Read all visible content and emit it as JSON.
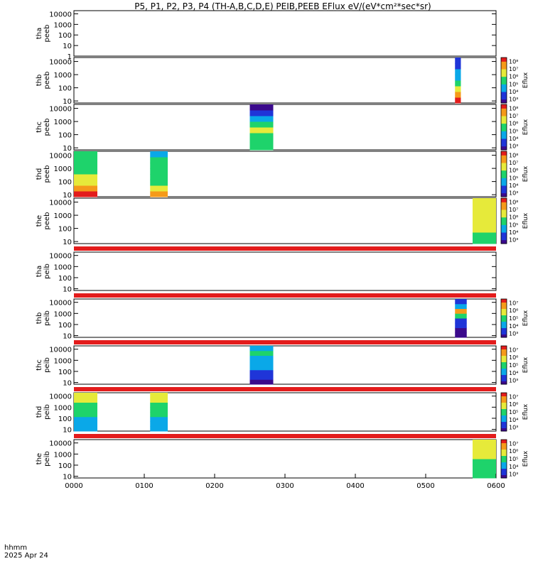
{
  "title": "P5, P1, P2, P3, P4 (TH-A,B,C,D,E) PEIB,PEEB EFlux eV/(eV*cm²*sec*sr)",
  "footer": {
    "time_format": "hhmm",
    "date": "2025 Apr 24"
  },
  "chart_data": {
    "type": "heatmap",
    "title": "P5, P1, P2, P3, P4 (TH-A,B,C,D,E) PEIB,PEEB EFlux eV/(eV*cm²*sec*sr)",
    "x_axis": {
      "unit": "hhmm",
      "range": [
        "0000",
        "0600"
      ],
      "tick_labels": [
        "0000",
        "0100",
        "0200",
        "0300",
        "0400",
        "0500",
        "0600"
      ]
    },
    "colorbar_label": "Eflux",
    "colormap": [
      "#3b0a8c",
      "#1f35d8",
      "#0aa8e8",
      "#1ed36b",
      "#e6ea3a",
      "#f59a1a",
      "#e31c1c"
    ],
    "panels": [
      {
        "id": "tha-peeb",
        "label": [
          "tha",
          "peeb"
        ],
        "y_log": true,
        "y_ticks": [
          "1",
          "10",
          "100",
          "1000",
          "10000"
        ],
        "ymin": 1,
        "ymax": 20000,
        "colorbar": null,
        "bars": [],
        "data": []
      },
      {
        "id": "thb-peeb",
        "label": [
          "thb",
          "peeb"
        ],
        "y_log": true,
        "y_ticks": [
          "10",
          "100",
          "1000",
          "10000"
        ],
        "ymin": 7,
        "ymax": 20000,
        "colorbar": {
          "ticks": [
            "10³",
            "10⁴",
            "10⁵",
            "10⁶",
            "10⁷",
            "10⁸"
          ]
        },
        "bars": [],
        "data": [
          {
            "start": "0525",
            "end": "0530",
            "profile": [
              0.95,
              0.8,
              0.6,
              0.45,
              0.35,
              0.25,
              0.18,
              0.1
            ]
          }
        ]
      },
      {
        "id": "thc-peeb",
        "label": [
          "thc",
          "peeb"
        ],
        "y_log": true,
        "y_ticks": [
          "10",
          "100",
          "1000",
          "10000"
        ],
        "ymin": 7,
        "ymax": 20000,
        "colorbar": {
          "ticks": [
            "10³",
            "10⁴",
            "10⁵",
            "10⁶",
            "10⁷",
            "10⁸"
          ]
        },
        "bars": [],
        "data": [
          {
            "start": "0230",
            "end": "0250",
            "profile": [
              0.5,
              0.45,
              0.55,
              0.6,
              0.5,
              0.35,
              0.2,
              0.08
            ]
          }
        ]
      },
      {
        "id": "thd-peeb",
        "label": [
          "thd",
          "peeb"
        ],
        "y_log": true,
        "y_ticks": [
          "10",
          "100",
          "1000",
          "10000"
        ],
        "ymin": 7,
        "ymax": 20000,
        "colorbar": {
          "ticks": [
            "10³",
            "10⁴",
            "10⁵",
            "10⁶",
            "10⁷",
            "10⁸"
          ]
        },
        "bars": [],
        "data": [
          {
            "start": "0000",
            "end": "0020",
            "profile": [
              0.92,
              0.75,
              0.68,
              0.62,
              0.58,
              0.55,
              0.5,
              0.45
            ]
          },
          {
            "start": "0105",
            "end": "0120",
            "profile": [
              0.88,
              0.62,
              0.55,
              0.5,
              0.48,
              0.45,
              0.42,
              0.4
            ]
          }
        ]
      },
      {
        "id": "the-peeb",
        "label": [
          "the",
          "peeb"
        ],
        "y_log": true,
        "y_ticks": [
          "10",
          "100",
          "1000",
          "10000"
        ],
        "ymin": 7,
        "ymax": 20000,
        "colorbar": {
          "ticks": [
            "10³",
            "10⁴",
            "10⁵",
            "10⁶",
            "10⁷",
            "10⁸"
          ]
        },
        "bars": [],
        "data": [
          {
            "start": "0540",
            "end": "0600",
            "profile": [
              0.5,
              0.55,
              0.6,
              0.63,
              0.66,
              0.68,
              0.7,
              0.7
            ]
          }
        ]
      },
      {
        "id": "tha-peib",
        "label": [
          "tha",
          "peib"
        ],
        "y_log": true,
        "y_ticks": [
          "10",
          "100",
          "1000",
          "10000"
        ],
        "ymin": 7,
        "ymax": 20000,
        "colorbar": null,
        "bars": [
          "top"
        ],
        "data": []
      },
      {
        "id": "thb-peib",
        "label": [
          "thb",
          "peib"
        ],
        "y_log": true,
        "y_ticks": [
          "10",
          "100",
          "1000",
          "10000"
        ],
        "ymin": 7,
        "ymax": 20000,
        "colorbar": {
          "ticks": [
            "10³",
            "10⁴",
            "10⁵",
            "10⁶",
            "10⁷"
          ]
        },
        "bars": [
          "top"
        ],
        "data": [
          {
            "start": "0525",
            "end": "0535",
            "profile": [
              0.05,
              0.08,
              0.12,
              0.2,
              0.55,
              0.85,
              0.35,
              0.15
            ]
          }
        ]
      },
      {
        "id": "thc-peib",
        "label": [
          "thc",
          "peib"
        ],
        "y_log": true,
        "y_ticks": [
          "10",
          "100",
          "1000",
          "10000"
        ],
        "ymin": 7,
        "ymax": 20000,
        "colorbar": {
          "ticks": [
            "10³",
            "10⁴",
            "10⁵",
            "10⁶",
            "10⁷"
          ]
        },
        "bars": [
          "top"
        ],
        "data": [
          {
            "start": "0230",
            "end": "0250",
            "profile": [
              0.05,
              0.1,
              0.2,
              0.3,
              0.35,
              0.4,
              0.45,
              0.4
            ]
          }
        ]
      },
      {
        "id": "thd-peib",
        "label": [
          "thd",
          "peib"
        ],
        "y_log": true,
        "y_ticks": [
          "10",
          "100",
          "1000",
          "10000"
        ],
        "ymin": 7,
        "ymax": 20000,
        "colorbar": {
          "ticks": [
            "10³",
            "10⁴",
            "10⁵",
            "10⁶",
            "10⁷"
          ]
        },
        "bars": [
          "top"
        ],
        "data": [
          {
            "start": "0000",
            "end": "0020",
            "profile": [
              0.35,
              0.38,
              0.4,
              0.42,
              0.45,
              0.5,
              0.6,
              0.7
            ]
          },
          {
            "start": "0105",
            "end": "0120",
            "profile": [
              0.35,
              0.38,
              0.4,
              0.42,
              0.45,
              0.5,
              0.6,
              0.7
            ]
          }
        ]
      },
      {
        "id": "the-peib",
        "label": [
          "the",
          "peib"
        ],
        "y_log": true,
        "y_ticks": [
          "10",
          "100",
          "1000",
          "10000"
        ],
        "ymin": 7,
        "ymax": 20000,
        "colorbar": {
          "ticks": [
            "10³",
            "10⁴",
            "10⁵",
            "10⁶",
            "10⁷"
          ]
        },
        "bars": [
          "top"
        ],
        "data": [
          {
            "start": "0540",
            "end": "0600",
            "profile": [
              0.5,
              0.52,
              0.55,
              0.58,
              0.6,
              0.62,
              0.64,
              0.66
            ]
          }
        ]
      }
    ]
  }
}
